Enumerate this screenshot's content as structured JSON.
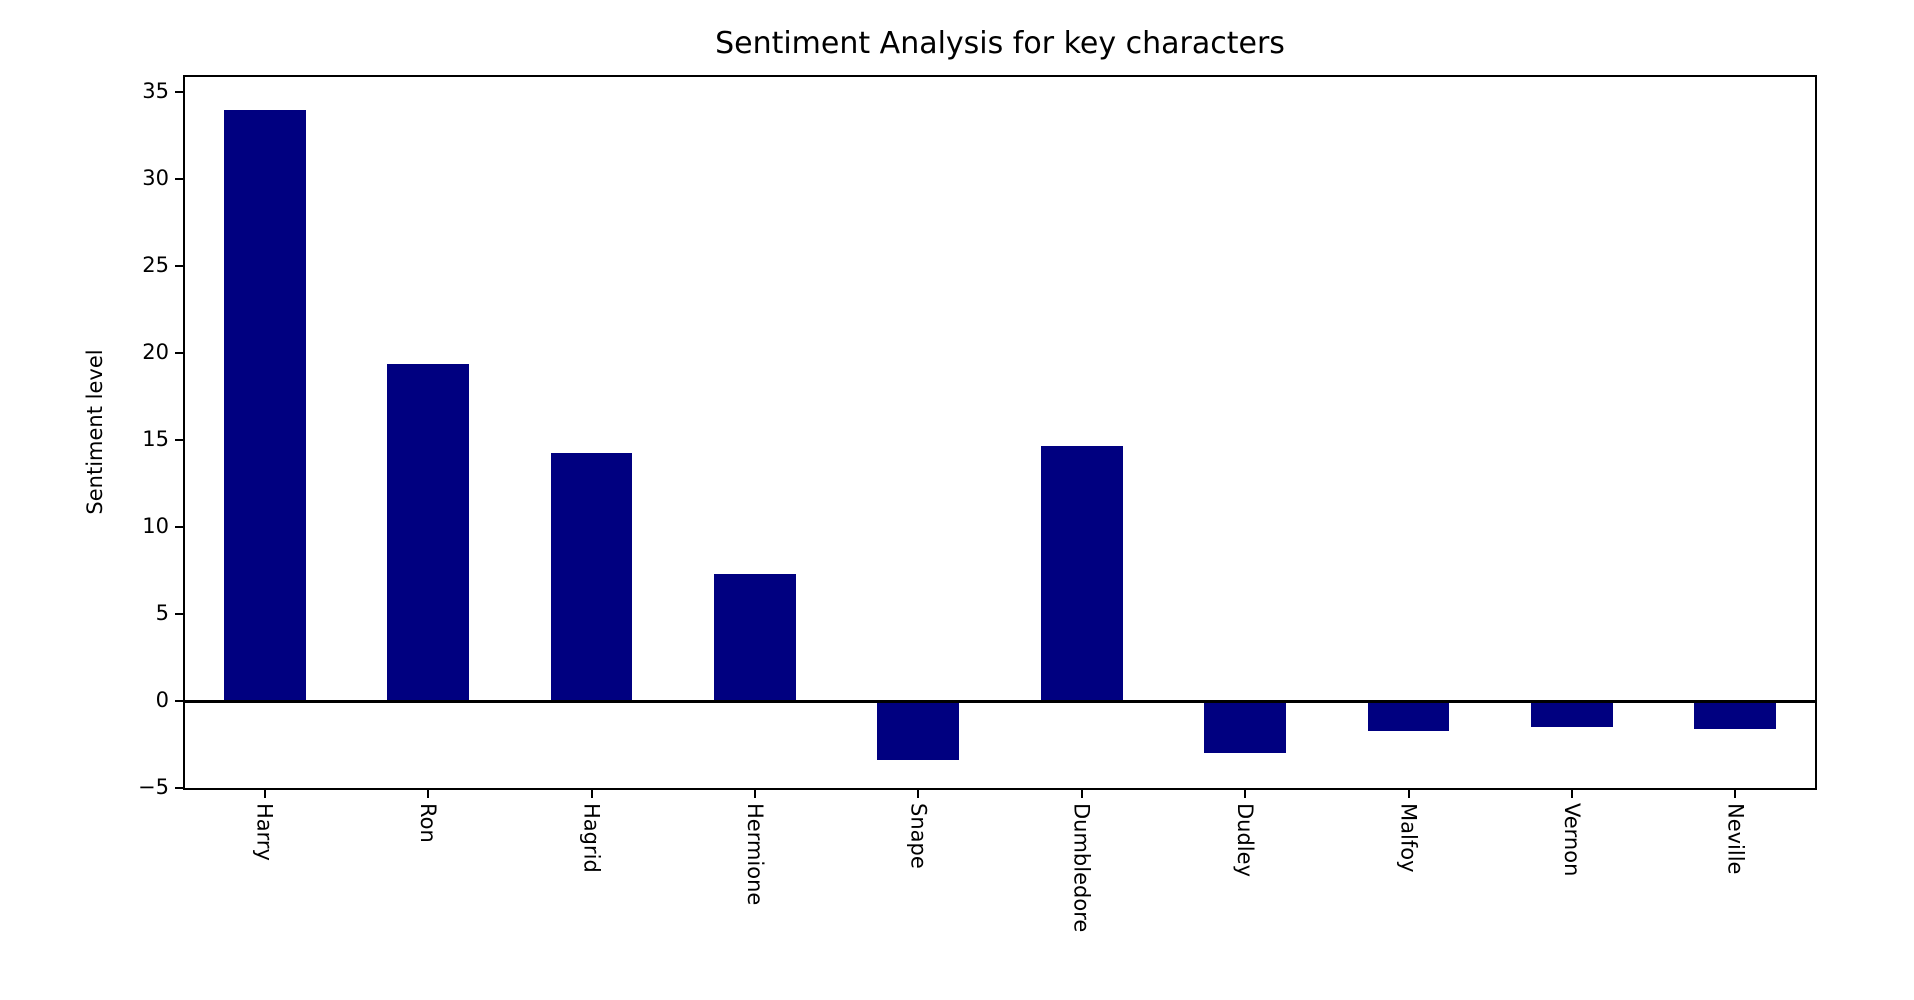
{
  "figure": {
    "background": "#ffffff"
  },
  "chart_data": {
    "type": "bar",
    "title": "Sentiment Analysis for key characters",
    "xlabel": "",
    "ylabel": "Sentiment level",
    "categories": [
      "Harry",
      "Ron",
      "Hagrid",
      "Hermione",
      "Snape",
      "Dumbledore",
      "Dudley",
      "Malfoy",
      "Vernon",
      "Neville"
    ],
    "values": [
      34.0,
      19.4,
      14.3,
      7.3,
      -3.4,
      14.7,
      -3.0,
      -1.7,
      -1.5,
      -1.6
    ],
    "bar_color": "#000080",
    "axis_color": "#000000",
    "text_color": "#000000",
    "ylim": [
      -5.1,
      36.0
    ],
    "yticks": [
      -5,
      0,
      5,
      10,
      15,
      20,
      25,
      30,
      35
    ],
    "xtick_rotation": 90,
    "grid": false,
    "legend_position": "none",
    "zero_line": true,
    "bar_width_fraction": 0.5
  }
}
